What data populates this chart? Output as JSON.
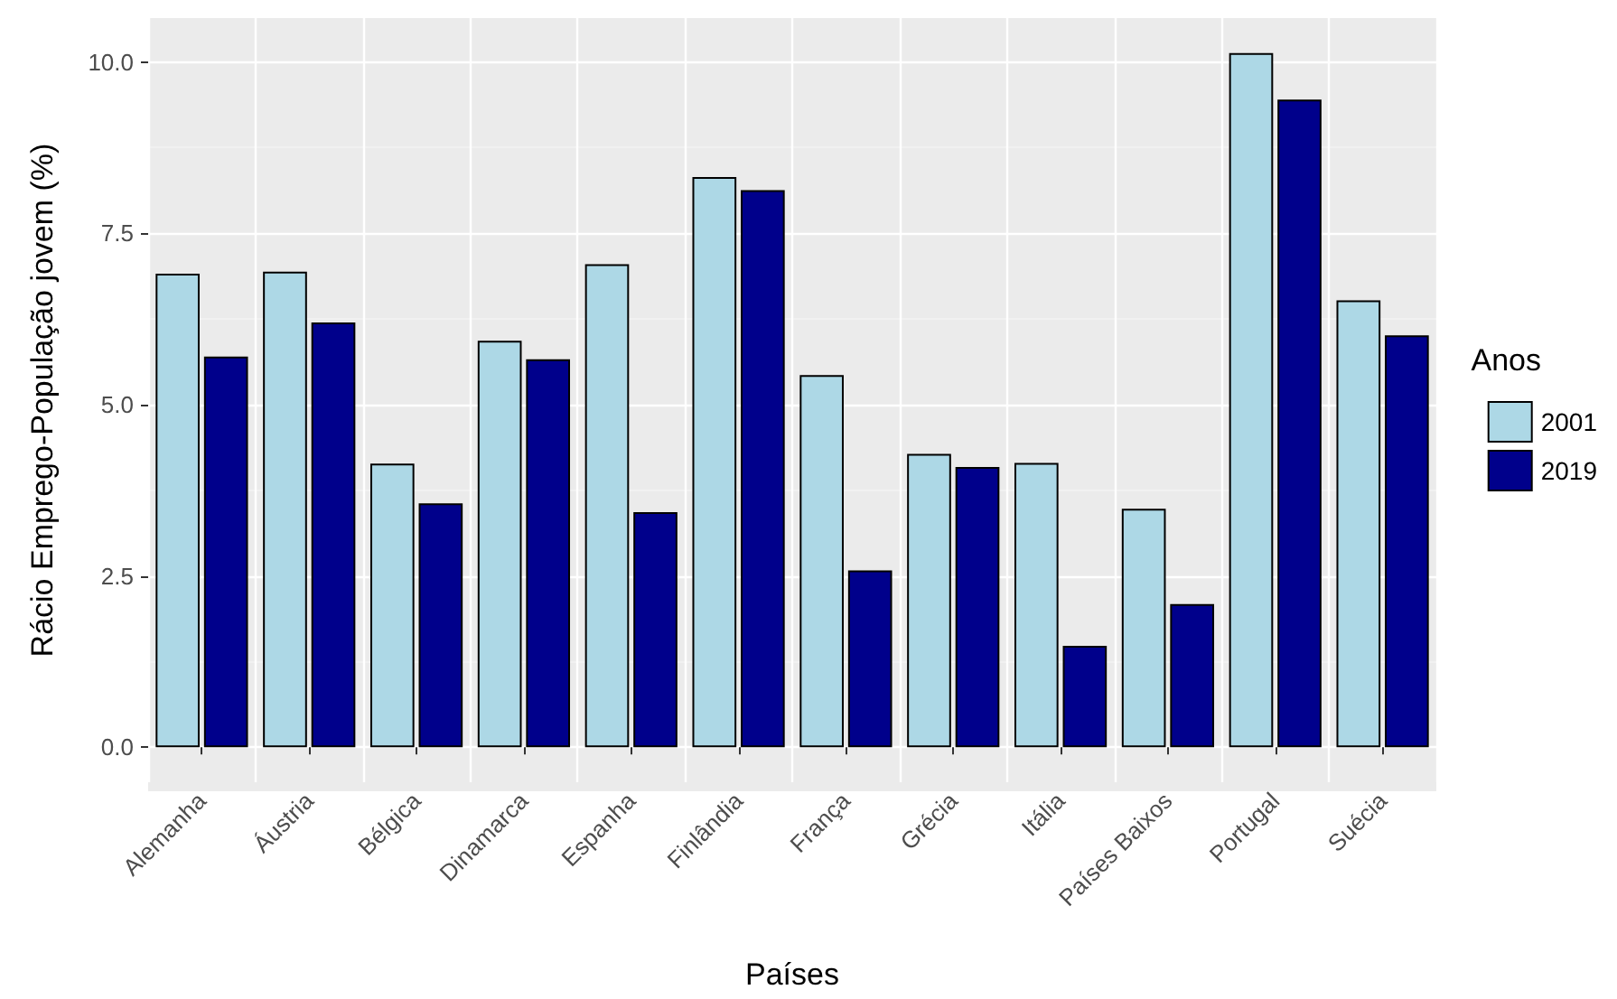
{
  "chart_data": {
    "type": "bar",
    "xlabel": "Países",
    "ylabel": "Rácio Emprego-População jovem (%)",
    "legend_title": "Anos",
    "categories": [
      "Alemanha",
      "Áustria",
      "Bélgica",
      "Dinamarca",
      "Espanha",
      "Finlândia",
      "França",
      "Grécia",
      "Itália",
      "Países Baixos",
      "Portugal",
      "Suécia"
    ],
    "series": [
      {
        "name": "2001",
        "color": "#add8e6",
        "values": [
          6.91,
          6.94,
          4.14,
          5.93,
          7.05,
          8.32,
          5.43,
          4.28,
          4.15,
          3.48,
          10.13,
          6.52
        ]
      },
      {
        "name": "2019",
        "color": "#00008b",
        "values": [
          5.7,
          6.2,
          3.56,
          5.66,
          3.43,
          8.13,
          2.58,
          4.09,
          1.48,
          2.09,
          9.45,
          6.01
        ]
      }
    ],
    "ylim": [
      -0.51,
      10.64
    ],
    "yticks": [
      {
        "value": 0,
        "label": "0.0"
      },
      {
        "value": 2.5,
        "label": "2.5"
      },
      {
        "value": 5,
        "label": "5.0"
      },
      {
        "value": 7.5,
        "label": "7.5"
      },
      {
        "value": 10,
        "label": "10.0"
      }
    ],
    "grid": true,
    "legend": "right"
  }
}
